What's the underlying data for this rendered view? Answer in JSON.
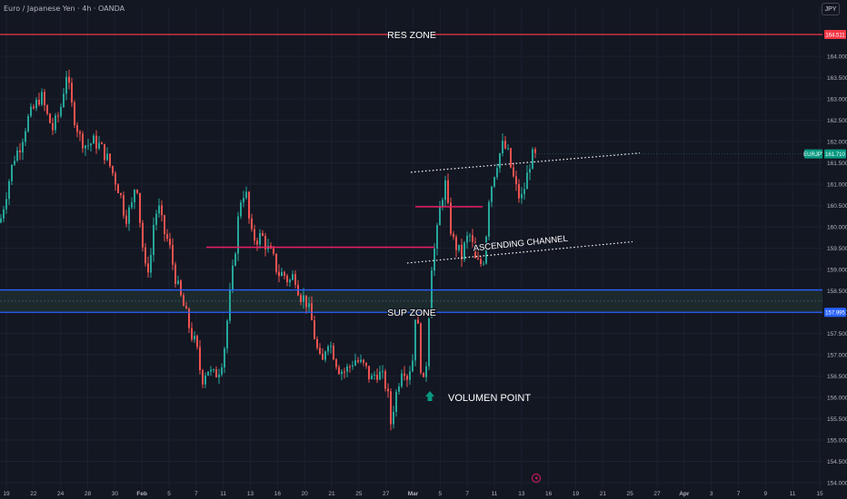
{
  "header": {
    "symbol_title": "Euro / Japanese Yen · 4h · OANDA",
    "currency_button": "JPY"
  },
  "colors": {
    "background": "#131722",
    "grid": "#1c2030",
    "up_candle": "#26a69a",
    "down_candle": "#ef5350",
    "resistance": "#f23645",
    "support": "#2962ff",
    "level_magenta": "#e91e63",
    "volume_arrow": "#089981"
  },
  "chart_data": {
    "type": "candlestick",
    "y_axis": {
      "range": [
        153.85,
        165.15
      ],
      "ticks": [
        154.0,
        154.5,
        155.0,
        155.5,
        156.0,
        156.5,
        157.0,
        157.5,
        158.0,
        158.5,
        159.0,
        159.5,
        160.0,
        160.5,
        161.0,
        161.5,
        162.0,
        162.5,
        163.0,
        163.5,
        164.0
      ],
      "tick_labels": [
        "154.000",
        "154.500",
        "155.000",
        "155.500",
        "156.000",
        "156.500",
        "157.000",
        "157.500",
        "158.000",
        "158.500",
        "159.000",
        "159.500",
        "160.000",
        "160.500",
        "161.000",
        "161.500",
        "162.000",
        "162.500",
        "163.000",
        "163.500",
        "164.000"
      ]
    },
    "x_axis": {
      "tick_labels": [
        "19",
        "22",
        "24",
        "28",
        "30",
        "Feb",
        "5",
        "7",
        "11",
        "13",
        "16",
        "20",
        "21",
        "25",
        "27",
        "Mar",
        "5",
        "7",
        "11",
        "13",
        "16",
        "19",
        "21",
        "25",
        "27",
        "Apr",
        "3",
        "7",
        "9",
        "11",
        "15"
      ],
      "tick_bold": [
        false,
        false,
        false,
        false,
        false,
        true,
        false,
        false,
        false,
        false,
        false,
        false,
        false,
        false,
        false,
        true,
        false,
        false,
        false,
        false,
        false,
        false,
        false,
        false,
        false,
        true,
        false,
        false,
        false,
        false,
        false
      ]
    },
    "price_path": [
      [
        0,
        160.1
      ],
      [
        8,
        160.9
      ],
      [
        15,
        161.6
      ],
      [
        22,
        161.9
      ],
      [
        30,
        162.5
      ],
      [
        38,
        162.8
      ],
      [
        45,
        163.1
      ],
      [
        52,
        162.6
      ],
      [
        58,
        162.3
      ],
      [
        66,
        162.7
      ],
      [
        73,
        163.6
      ],
      [
        80,
        162.7
      ],
      [
        88,
        162.1
      ],
      [
        95,
        161.9
      ],
      [
        103,
        162.0
      ],
      [
        110,
        161.9
      ],
      [
        118,
        161.6
      ],
      [
        125,
        161.2
      ],
      [
        132,
        160.8
      ],
      [
        138,
        160.2
      ],
      [
        145,
        160.5
      ],
      [
        150,
        161.2
      ],
      [
        155,
        159.9
      ],
      [
        160,
        159.0
      ],
      [
        165,
        159.1
      ],
      [
        170,
        160.3
      ],
      [
        175,
        160.4
      ],
      [
        180,
        159.9
      ],
      [
        186,
        159.6
      ],
      [
        192,
        158.9
      ],
      [
        198,
        158.4
      ],
      [
        204,
        158.0
      ],
      [
        210,
        157.5
      ],
      [
        216,
        157.2
      ],
      [
        222,
        156.4
      ],
      [
        228,
        156.7
      ],
      [
        234,
        156.5
      ],
      [
        240,
        156.6
      ],
      [
        246,
        157.0
      ],
      [
        252,
        158.2
      ],
      [
        258,
        159.3
      ],
      [
        264,
        160.6
      ],
      [
        270,
        160.9
      ],
      [
        276,
        159.8
      ],
      [
        282,
        159.7
      ],
      [
        288,
        159.8
      ],
      [
        294,
        159.5
      ],
      [
        300,
        159.3
      ],
      [
        306,
        158.9
      ],
      [
        312,
        158.9
      ],
      [
        318,
        158.7
      ],
      [
        324,
        158.9
      ],
      [
        330,
        158.4
      ],
      [
        336,
        158.3
      ],
      [
        342,
        157.9
      ],
      [
        348,
        157.2
      ],
      [
        354,
        156.7
      ],
      [
        360,
        157.4
      ],
      [
        366,
        157.1
      ],
      [
        372,
        156.7
      ],
      [
        378,
        156.6
      ],
      [
        384,
        156.7
      ],
      [
        390,
        156.9
      ],
      [
        396,
        156.8
      ],
      [
        402,
        156.7
      ],
      [
        408,
        156.4
      ],
      [
        414,
        156.6
      ],
      [
        420,
        156.5
      ],
      [
        426,
        156.2
      ],
      [
        430,
        155.4
      ],
      [
        434,
        155.9
      ],
      [
        438,
        156.3
      ],
      [
        443,
        156.8
      ],
      [
        448,
        156.5
      ],
      [
        454,
        156.9
      ],
      [
        458,
        158.3
      ],
      [
        462,
        156.9
      ],
      [
        466,
        156.3
      ],
      [
        470,
        157.0
      ],
      [
        474,
        159.0
      ],
      [
        480,
        159.7
      ],
      [
        485,
        160.6
      ],
      [
        490,
        161.0
      ],
      [
        494,
        160.2
      ],
      [
        498,
        159.7
      ],
      [
        503,
        159.5
      ],
      [
        508,
        159.3
      ],
      [
        513,
        159.7
      ],
      [
        518,
        159.8
      ],
      [
        523,
        159.2
      ],
      [
        528,
        159.1
      ],
      [
        533,
        159.3
      ],
      [
        538,
        160.7
      ],
      [
        543,
        161.2
      ],
      [
        548,
        161.6
      ],
      [
        553,
        161.9
      ],
      [
        558,
        161.8
      ],
      [
        563,
        161.3
      ],
      [
        568,
        160.9
      ],
      [
        573,
        160.6
      ],
      [
        578,
        161.0
      ],
      [
        583,
        161.5
      ],
      [
        587,
        161.7
      ],
      [
        590,
        161.6
      ]
    ],
    "levels": [
      {
        "label": "RES ZONE",
        "price": 164.511,
        "axis_tag": "164.511"
      },
      {
        "label": "SUP ZONE",
        "price": 157.995,
        "axis_tag": "157.995"
      },
      {
        "label": "",
        "price": 158.52
      },
      {
        "label": "",
        "price": 159.52
      },
      {
        "label": "",
        "price": 160.47
      }
    ],
    "channel": {
      "label": "ASCENDING CHANNEL",
      "upper": [
        [
          452,
          161.28
        ],
        [
          704,
          161.73
        ]
      ],
      "lower": [
        [
          448,
          159.15
        ],
        [
          696,
          159.65
        ]
      ]
    },
    "annotations": [
      {
        "label": "VOLUMEN POINT",
        "marker": "up-arrow-icon"
      }
    ],
    "current_price": {
      "label": "EURJPY",
      "value": "161.710"
    },
    "event_marker": "lightning-icon"
  }
}
